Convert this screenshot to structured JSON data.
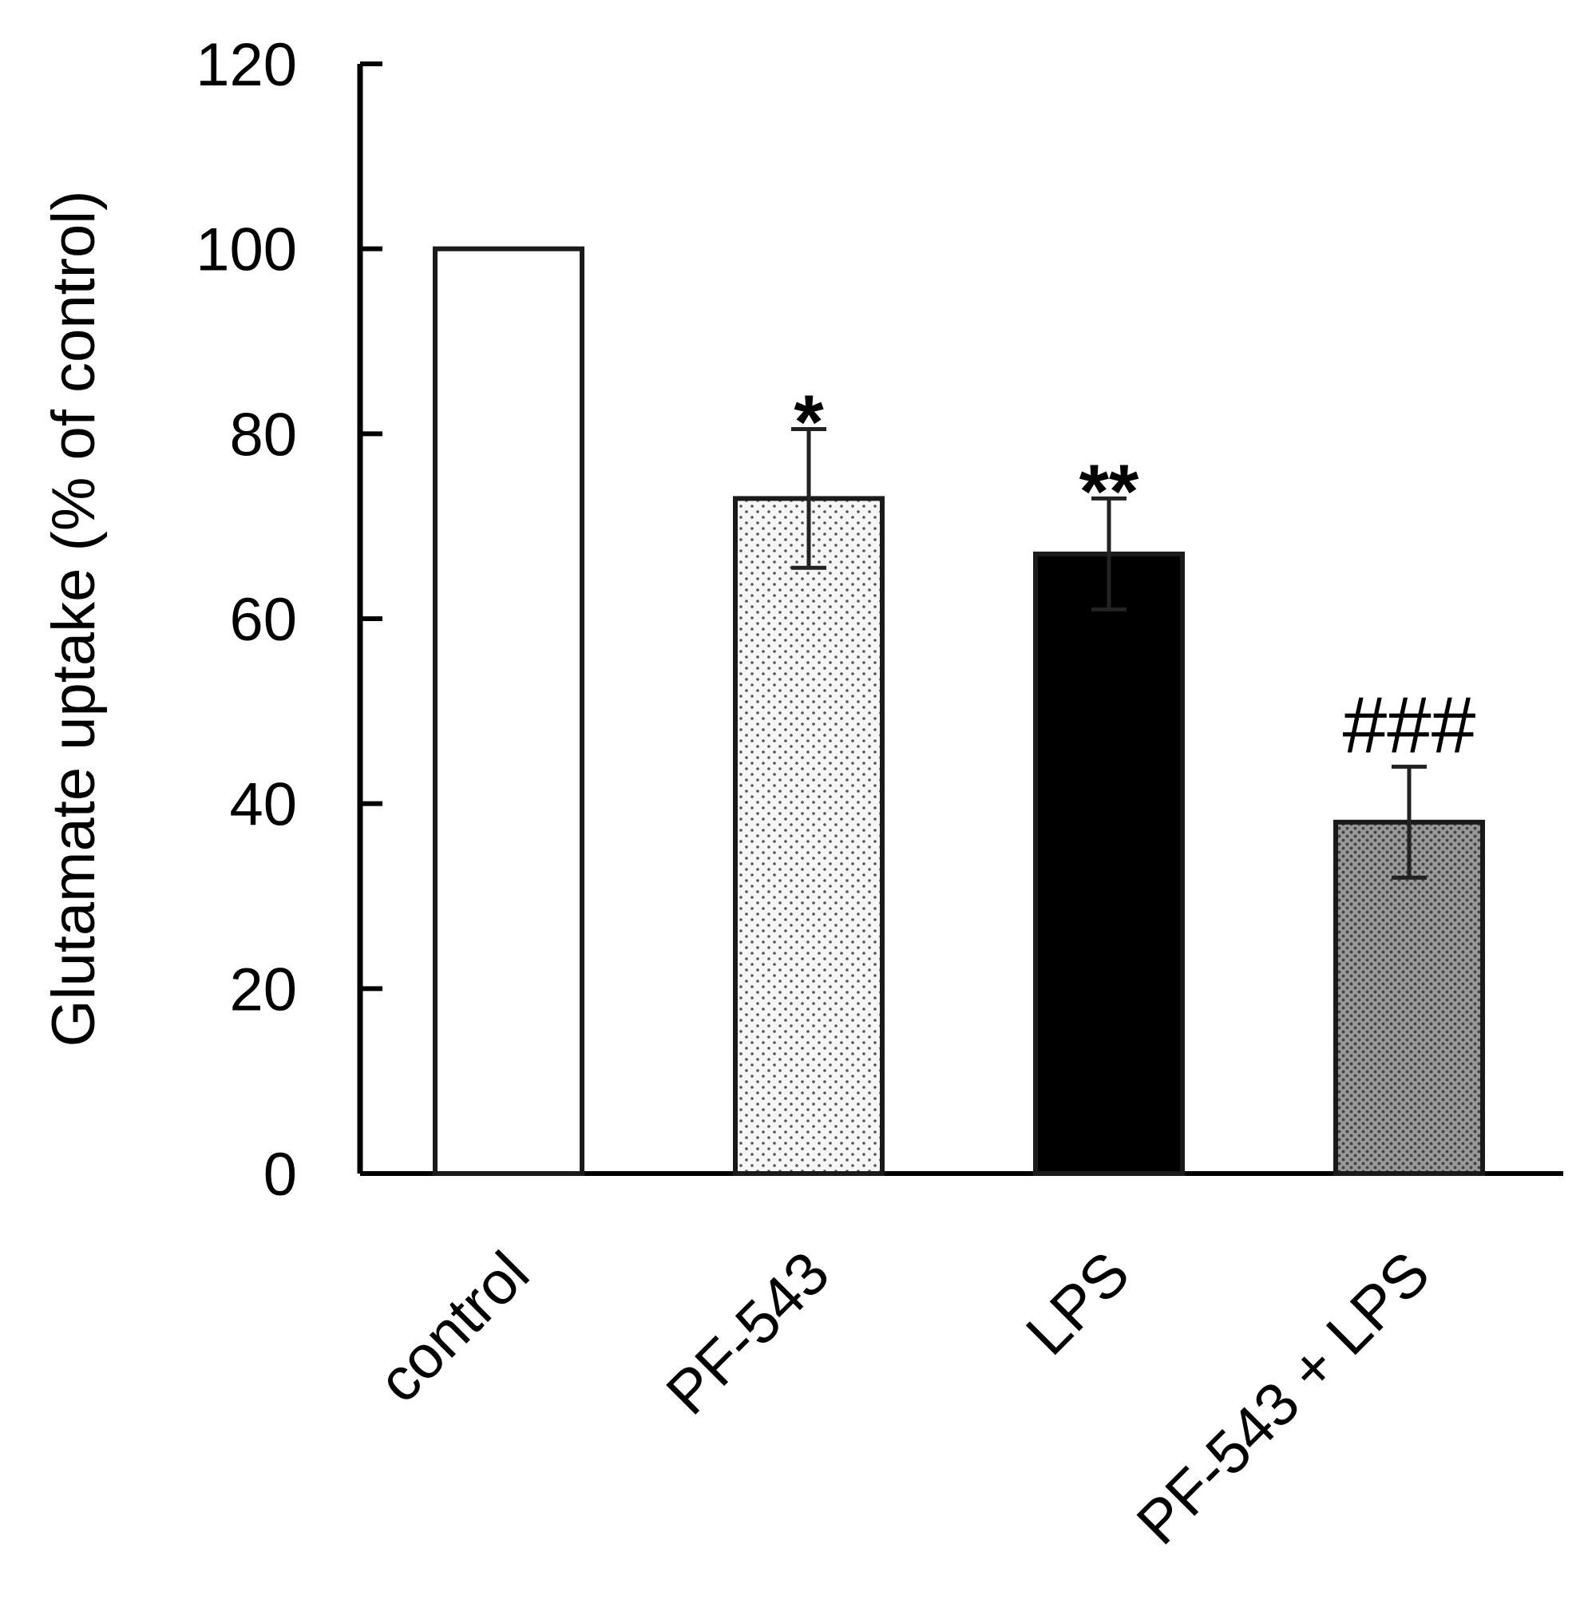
{
  "chart_data": {
    "type": "bar",
    "title": "",
    "xlabel": "",
    "ylabel": "Glutamate uptake (% of control)",
    "ylim": [
      0,
      120
    ],
    "yticks": [
      "0",
      "20",
      "40",
      "60",
      "80",
      "100",
      "120"
    ],
    "categories": [
      "control",
      "PF-543",
      "LPS",
      "PF-543 + LPS"
    ],
    "values": [
      100,
      73,
      67,
      38
    ],
    "errors": [
      0,
      7.5,
      6,
      6
    ],
    "significance": [
      "",
      "*",
      "**",
      "###"
    ],
    "fills": [
      "white",
      "light-dotted",
      "black",
      "dark-dotted"
    ],
    "colors": {
      "axis": "#000000",
      "bar_outline": "#1a1a1a",
      "white_fill": "#ffffff",
      "light_dotted_fill": "#f4f4f4",
      "black_fill": "#000000",
      "dark_dotted_fill": "#8a8a8a"
    },
    "grid": false,
    "legend": "none"
  }
}
